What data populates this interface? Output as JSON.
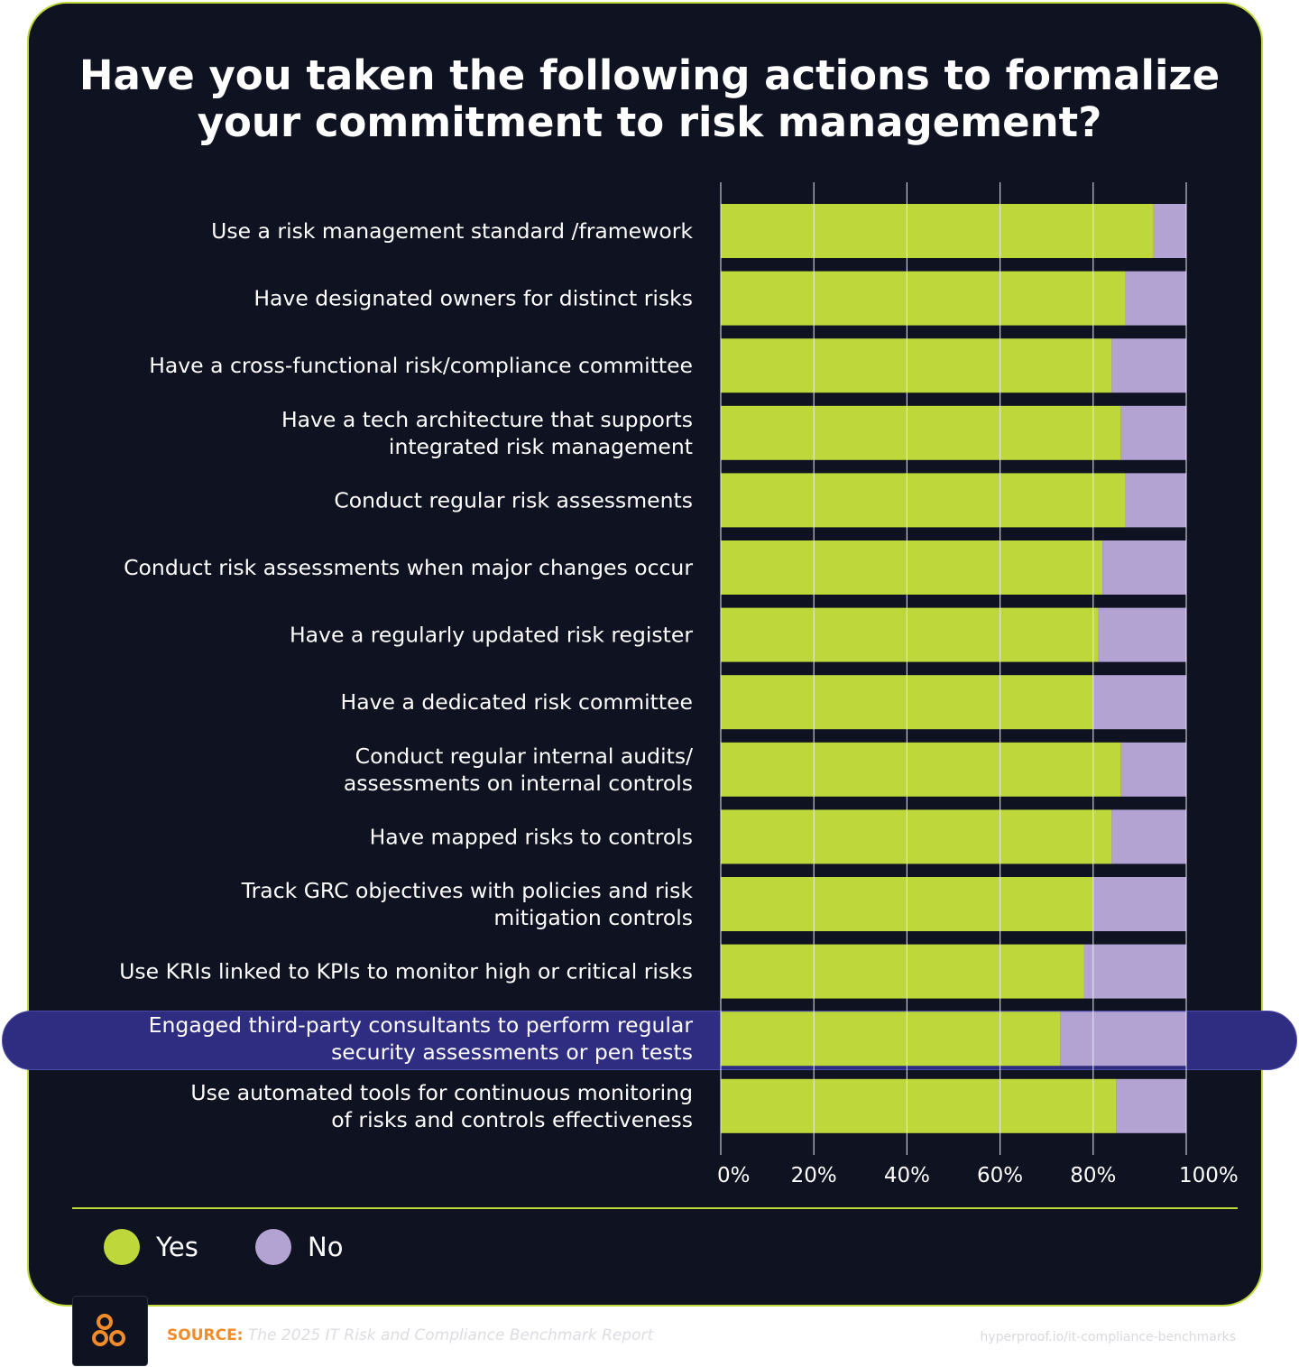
{
  "chart_data": {
    "type": "bar",
    "orientation": "horizontal",
    "stacked": true,
    "title": "Have you taken the following actions to formalize your commitment to risk management?",
    "categories": [
      "Use a risk management standard /framework",
      "Have designated owners for distinct risks",
      "Have a cross-functional risk/compliance committee",
      "Have a tech architecture that supports integrated risk management",
      "Conduct regular risk assessments",
      "Conduct risk assessments when major changes occur",
      "Have a regularly updated risk register",
      "Have a dedicated risk committee",
      "Conduct regular internal audits/ assessments on internal controls",
      "Have mapped risks to controls",
      "Track GRC objectives with policies and risk mitigation controls",
      "Use KRIs linked to KPIs to monitor high or critical risks",
      "Engaged third-party consultants to perform regular security assessments or pen tests",
      "Use automated tools for continuous monitoring of risks and controls effectiveness"
    ],
    "category_lines": [
      [
        "Use a risk management standard /framework"
      ],
      [
        "Have designated owners for distinct risks"
      ],
      [
        "Have a cross-functional risk/compliance committee"
      ],
      [
        "Have a tech architecture that supports",
        "integrated risk management"
      ],
      [
        "Conduct regular risk assessments"
      ],
      [
        "Conduct risk assessments when major changes occur"
      ],
      [
        "Have a regularly updated risk register"
      ],
      [
        "Have a dedicated risk committee"
      ],
      [
        "Conduct regular internal audits/",
        "assessments on internal controls"
      ],
      [
        "Have mapped risks to controls"
      ],
      [
        "Track GRC objectives with policies and risk",
        "mitigation controls"
      ],
      [
        "Use KRIs linked to KPIs to monitor high or critical risks"
      ],
      [
        "Engaged third-party consultants to perform regular",
        "security assessments or pen tests"
      ],
      [
        "Use automated tools for continuous monitoring",
        "of risks and controls effectiveness"
      ]
    ],
    "series": [
      {
        "name": "Yes",
        "color": "#bed73b",
        "values": [
          93,
          87,
          84,
          86,
          87,
          82,
          81,
          80,
          86,
          84,
          80,
          78,
          73,
          85
        ]
      },
      {
        "name": "No",
        "color": "#b3a3d3",
        "values": [
          7,
          13,
          16,
          14,
          13,
          18,
          19,
          20,
          14,
          16,
          20,
          22,
          27,
          15
        ]
      }
    ],
    "xlim": [
      0,
      100
    ],
    "xticks": [
      "0%",
      "20%",
      "40%",
      "60%",
      "80%",
      "100%"
    ],
    "grid": true,
    "highlighted_category_index": 12,
    "legend": {
      "position": "bottom-left",
      "items": [
        "Yes",
        "No"
      ]
    }
  },
  "colors": {
    "background": "#0e1221",
    "accent": "#bed73b",
    "yes": "#bed73b",
    "no": "#b3a3d3",
    "highlight": "#2f2d82",
    "source_label": "#f28c28"
  },
  "footer": {
    "logo_icon": "three-circles-logo-icon",
    "source_label": "SOURCE:",
    "source_text": "The 2025 IT Risk and Compliance Benchmark Report",
    "url": "hyperproof.io/it-compliance-benchmarks"
  }
}
